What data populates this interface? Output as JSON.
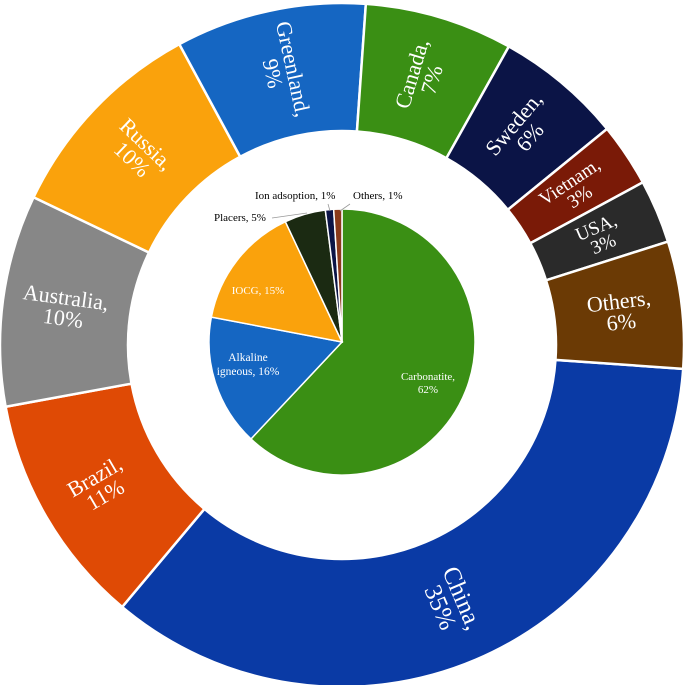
{
  "chart_data": [
    {
      "type": "pie",
      "name": "outer-ring",
      "categories": [
        "China",
        "Brazil",
        "Australia",
        "Russia",
        "Greenland",
        "Canada",
        "Sweden",
        "Vietnam",
        "USA",
        "Others"
      ],
      "values": [
        35,
        11,
        10,
        10,
        9,
        7,
        6,
        3,
        3,
        6
      ],
      "labels": [
        "35%",
        "11%",
        "10%",
        "10%",
        "9%",
        "7%",
        "6%",
        "3%",
        "3%",
        "6%"
      ],
      "colors": [
        "#0a3aa5",
        "#df4a05",
        "#878787",
        "#faa20c",
        "#1566c2",
        "#3a8f14",
        "#0b1446",
        "#7a1a07",
        "#2a2a2a",
        "#6b3a05"
      ]
    },
    {
      "type": "pie",
      "name": "inner-pie",
      "categories": [
        "Carbonatite",
        "Alkaline igneous",
        "IOCG",
        "Placers",
        "Ion adsoption",
        "Others"
      ],
      "values": [
        62,
        16,
        15,
        5,
        1,
        1
      ],
      "labels": [
        [
          "Carbonatite,",
          "62%"
        ],
        [
          "Alkaline",
          "igneous, 16%"
        ],
        [
          "IOCG, 15%"
        ],
        [
          "Placers, 5%"
        ],
        [
          "Ion adsoption, 1%"
        ],
        [
          "Others, 1%"
        ]
      ],
      "colors": [
        "#3a8f14",
        "#1566c2",
        "#faa20c",
        "#1b2a12",
        "#0b1446",
        "#8a3a1a"
      ]
    }
  ]
}
